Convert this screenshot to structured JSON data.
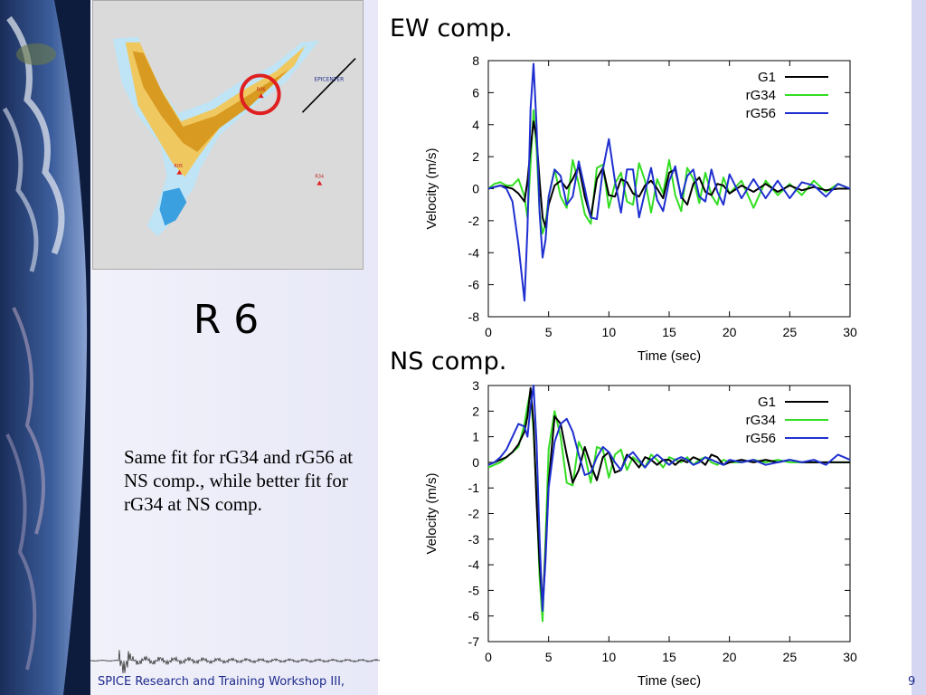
{
  "slide": {
    "label": "R 6",
    "description": "Same fit for rG34 and rG56 at NS comp., while better fit for rG34 at NS comp.",
    "footer": "SPICE Research and Training Workshop III,",
    "footer_right": "9",
    "colors": {
      "background": "#e2e3f6",
      "footer_text": "#1e2a8c"
    }
  },
  "map": {
    "epicenter_label": "EPICENTER",
    "stations": [
      "R06",
      "R05",
      "R34"
    ],
    "highlight_color": "#e02020"
  },
  "chart_data": [
    {
      "type": "line",
      "title": "EW comp.",
      "xlabel": "Time (sec)",
      "ylabel": "Velocity (m/s)",
      "xlim": [
        0,
        30
      ],
      "ylim": [
        -8,
        8
      ],
      "xticks": [
        0,
        5,
        10,
        15,
        20,
        25,
        30
      ],
      "yticks": [
        -8,
        -6,
        -4,
        -2,
        0,
        2,
        4,
        6,
        8
      ],
      "grid": false,
      "legend": "top-right",
      "x": [
        0,
        0.5,
        1,
        1.5,
        2,
        2.5,
        3,
        3.25,
        3.5,
        3.75,
        4,
        4.25,
        4.5,
        4.75,
        5,
        5.5,
        6,
        6.5,
        7,
        7.5,
        8,
        8.5,
        9,
        9.5,
        10,
        10.5,
        11,
        11.5,
        12,
        12.5,
        13,
        13.5,
        14,
        14.5,
        15,
        15.5,
        16,
        16.5,
        17,
        17.5,
        18,
        18.5,
        19,
        19.5,
        20,
        21,
        22,
        23,
        24,
        25,
        26,
        27,
        28,
        29,
        30
      ],
      "series": [
        {
          "name": "G1",
          "color": "#000000",
          "values": [
            0,
            0.1,
            0.2,
            0.1,
            0,
            -0.3,
            -0.8,
            0.5,
            2.5,
            4.2,
            3.2,
            0.5,
            -1.8,
            -2.4,
            -1,
            0.2,
            0.5,
            0,
            0.6,
            1.4,
            -0.5,
            -1.8,
            0.6,
            1.3,
            -0.4,
            -0.5,
            0.6,
            0.4,
            -0.3,
            -0.5,
            0.2,
            0.5,
            0,
            -0.6,
            1.0,
            1.2,
            -0.5,
            -1.0,
            0.3,
            0.7,
            -0.2,
            -0.4,
            0.3,
            0.2,
            -0.3,
            0.2,
            -0.2,
            0.3,
            -0.2,
            0.2,
            -0.1,
            0.1,
            -0.1,
            0,
            0
          ]
        },
        {
          "name": "rG34",
          "color": "#33dd22",
          "values": [
            0,
            0.3,
            0.4,
            0.2,
            0.2,
            0.6,
            -0.5,
            -1.8,
            1.5,
            4.9,
            2.5,
            -1.5,
            -2.8,
            -2.2,
            -0.5,
            1.2,
            -0.5,
            -1.2,
            1.8,
            0.3,
            -1.6,
            -2.2,
            1.3,
            1.5,
            -1.2,
            0.3,
            1.0,
            -0.8,
            -1.0,
            1.6,
            0.5,
            -1.5,
            0.6,
            -0.3,
            1.8,
            -0.4,
            -1.4,
            1.3,
            0.6,
            -0.9,
            1.0,
            -0.4,
            -1.0,
            0.7,
            -0.3,
            0.5,
            -1.2,
            0.5,
            -0.4,
            0.3,
            -0.4,
            0.5,
            -0.2,
            0.3,
            0
          ]
        },
        {
          "name": "rG56",
          "color": "#1f2fd0",
          "values": [
            0,
            0.1,
            0.2,
            0,
            -0.8,
            -3.5,
            -7.0,
            -2.5,
            5.0,
            7.8,
            4.0,
            -1.5,
            -4.3,
            -3.2,
            -0.5,
            1.2,
            0.8,
            -1.0,
            -0.5,
            1.7,
            0,
            -1.8,
            -1.9,
            1.2,
            3.1,
            0.5,
            -1.5,
            1.2,
            1.2,
            -1.8,
            -0.2,
            1.3,
            -0.7,
            -1.4,
            0.5,
            1.4,
            -0.6,
            0.8,
            1.2,
            -0.5,
            -0.8,
            1.2,
            -0.2,
            -1.0,
            0.9,
            -0.6,
            0.6,
            -0.6,
            0.5,
            -0.6,
            0.4,
            0.2,
            -0.5,
            0.3,
            0
          ]
        }
      ]
    },
    {
      "type": "line",
      "title": "NS comp.",
      "xlabel": "Time (sec)",
      "ylabel": "Velocity (m/s)",
      "xlim": [
        0,
        30
      ],
      "ylim": [
        -7,
        3
      ],
      "xticks": [
        0,
        5,
        10,
        15,
        20,
        25,
        30
      ],
      "yticks": [
        -7,
        -6,
        -5,
        -4,
        -3,
        -2,
        -1,
        0,
        1,
        2,
        3
      ],
      "grid": false,
      "legend": "top-right",
      "x": [
        0,
        0.5,
        1,
        1.5,
        2,
        2.5,
        3,
        3.25,
        3.5,
        3.75,
        4,
        4.25,
        4.5,
        4.75,
        5,
        5.5,
        6,
        6.5,
        7,
        7.5,
        8,
        8.5,
        9,
        9.5,
        10,
        10.5,
        11,
        11.5,
        12,
        12.5,
        13,
        13.5,
        14,
        14.5,
        15,
        15.5,
        16,
        16.5,
        17,
        17.5,
        18,
        18.5,
        19,
        19.5,
        20,
        21,
        22,
        23,
        24,
        25,
        26,
        27,
        28,
        29,
        30
      ],
      "series": [
        {
          "name": "G1",
          "color": "#000000",
          "values": [
            -0.1,
            0,
            0.1,
            0.2,
            0.4,
            0.7,
            1.2,
            1.8,
            2.9,
            1.5,
            -1.5,
            -4.0,
            -5.7,
            -3.5,
            -0.8,
            1.8,
            1.5,
            0.3,
            -0.8,
            -0.3,
            0.6,
            -0.1,
            -0.7,
            0.2,
            0.4,
            -0.4,
            -0.3,
            0.3,
            0.1,
            -0.2,
            0.2,
            0.1,
            -0.1,
            0.1,
            0.1,
            -0.1,
            0.1,
            0,
            0.2,
            0.1,
            -0.1,
            0.3,
            0.2,
            -0.1,
            0,
            0.1,
            0,
            0.1,
            0,
            0.1,
            0,
            0,
            0,
            0,
            0
          ]
        },
        {
          "name": "rG34",
          "color": "#33dd22",
          "values": [
            -0.2,
            -0.1,
            0,
            0.2,
            0.4,
            0.6,
            1.5,
            2.2,
            2.8,
            1.2,
            -1.2,
            -4.5,
            -6.2,
            -3.0,
            0.5,
            2.0,
            1.0,
            -0.8,
            -0.9,
            0.8,
            0.3,
            -0.8,
            0.6,
            0.5,
            -0.6,
            0.3,
            0.5,
            -0.3,
            0.2,
            0,
            -0.2,
            0.3,
            0.1,
            -0.2,
            0.2,
            0.1,
            0,
            0.2,
            -0.1,
            0.1,
            0.2,
            0,
            -0.1,
            0.1,
            0,
            0,
            0.1,
            0,
            0.1,
            0,
            0,
            0,
            0,
            0,
            0
          ]
        },
        {
          "name": "rG56",
          "color": "#1f2fd0",
          "values": [
            -0.1,
            0,
            0.2,
            0.5,
            1.0,
            1.5,
            1.4,
            1.0,
            2.2,
            3.0,
            0.8,
            -3.0,
            -5.8,
            -3.8,
            -1.0,
            0.8,
            1.5,
            1.7,
            1.2,
            0.3,
            -0.5,
            -0.4,
            0.2,
            0.6,
            0.4,
            0,
            -0.3,
            0.2,
            0.4,
            0.1,
            -0.2,
            0.1,
            0.3,
            0.1,
            -0.1,
            0.1,
            0.2,
            0.1,
            -0.1,
            0,
            0.2,
            0.1,
            0,
            -0.1,
            0.1,
            0,
            0.1,
            -0.1,
            0,
            0.1,
            0,
            0.1,
            -0.1,
            0.3,
            0.1
          ]
        }
      ]
    }
  ]
}
